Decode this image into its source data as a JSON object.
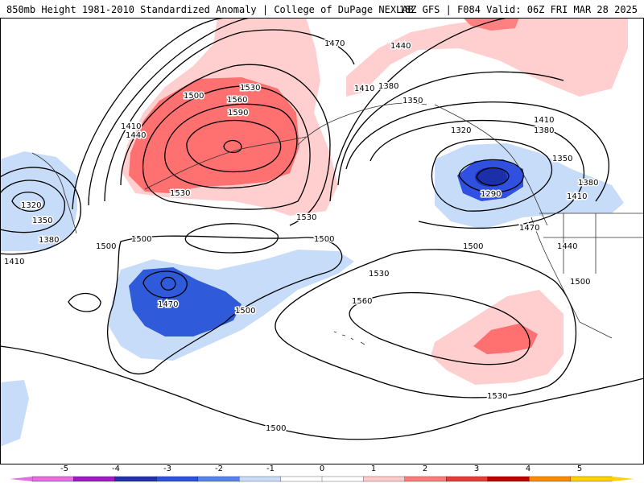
{
  "header": {
    "title": "850mb Height 1981-2010 Standardized Anomaly | College of DuPage NEXLAB",
    "valid": "18Z GFS | F084 Valid: 06Z FRI MAR 28 2025"
  },
  "colorbar": {
    "labels": [
      "-5",
      "-4",
      "-3",
      "-2",
      "-1",
      "0",
      "1",
      "2",
      "3",
      "4",
      "5"
    ],
    "colors": [
      "#e070e0",
      "#9a1cc8",
      "#2330b0",
      "#3050e0",
      "#5a82ef",
      "#c8ddf8",
      "#ffffff",
      "#ffffff",
      "#ffcaca",
      "#ff7a7a",
      "#e83a3a",
      "#c00000",
      "#ff8c00",
      "#ffd200"
    ]
  },
  "contour_labels": {
    "l1470a": "1470",
    "l1440a": "1440",
    "l1410a": "1410",
    "l1380a": "1380",
    "l1350a": "1350",
    "l1320a": "1320",
    "l1410b": "1410",
    "l1380b": "1380",
    "l1350b": "1350",
    "l1290": "1290",
    "l1380c": "1380",
    "l1410c": "1410",
    "l1470b": "1470",
    "l1440b": "1440",
    "l1500a": "1500",
    "l1530a": "1530",
    "l1560a": "1560",
    "l1590": "1590",
    "l1500b": "1500",
    "l1410d": "1410",
    "l1440c": "1440",
    "l1530b": "1530",
    "l1530c": "1530",
    "l1500c": "1500",
    "l1500d": "1500",
    "l1320b": "1320",
    "l1350c": "1350",
    "l1380d": "1380",
    "l1410e": "1410",
    "l1470c": "1470",
    "l1500e": "1500",
    "l1500f": "1500",
    "l1530d": "1530",
    "l1560b": "1560",
    "l1530e": "1530",
    "l1500g": "1500",
    "l1500h": "1500"
  }
}
